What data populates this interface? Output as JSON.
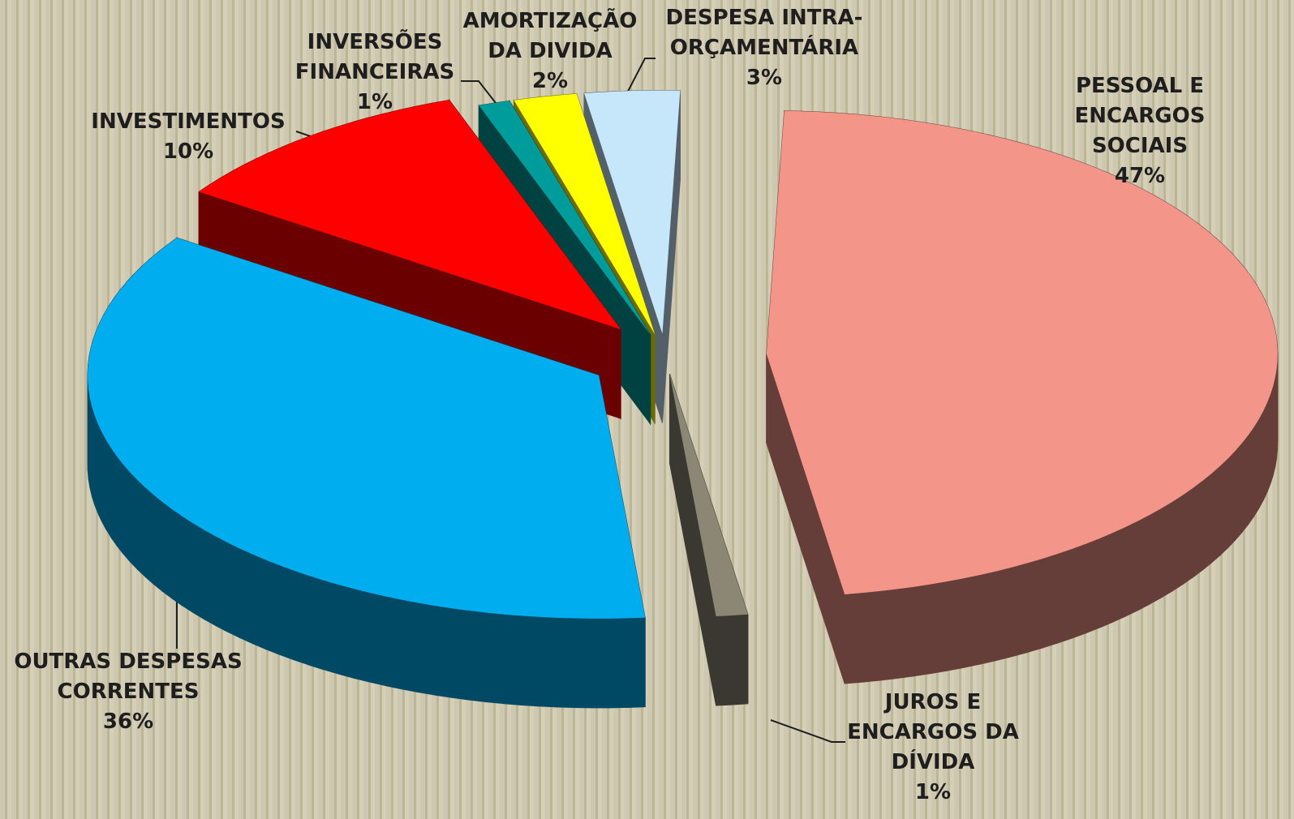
{
  "chart_data": {
    "type": "pie3d",
    "categories": [
      "PESSOAL E\nENCARGOS SOCIAIS",
      "JUROS E\nENCARGOS DA\nDÍVIDA",
      "OUTRAS DESPESAS\nCORRENTES",
      "INVESTIMENTOS",
      "INVERSÕES\nFINANCEIRAS",
      "AMORTIZAÇÃO\nDA DIVIDA",
      "DESPESA INTRA-\nORÇAMENTÁRIA"
    ],
    "values": [
      47,
      1,
      36,
      10,
      1,
      2,
      3
    ],
    "value_labels": [
      "47%",
      "1%",
      "36%",
      "10%",
      "1%",
      "2%",
      "3%"
    ],
    "colors": [
      "#f4958a",
      "#8c8674",
      "#00aeef",
      "#ff0000",
      "#009c9c",
      "#ffff00",
      "#c6e6fa"
    ]
  }
}
